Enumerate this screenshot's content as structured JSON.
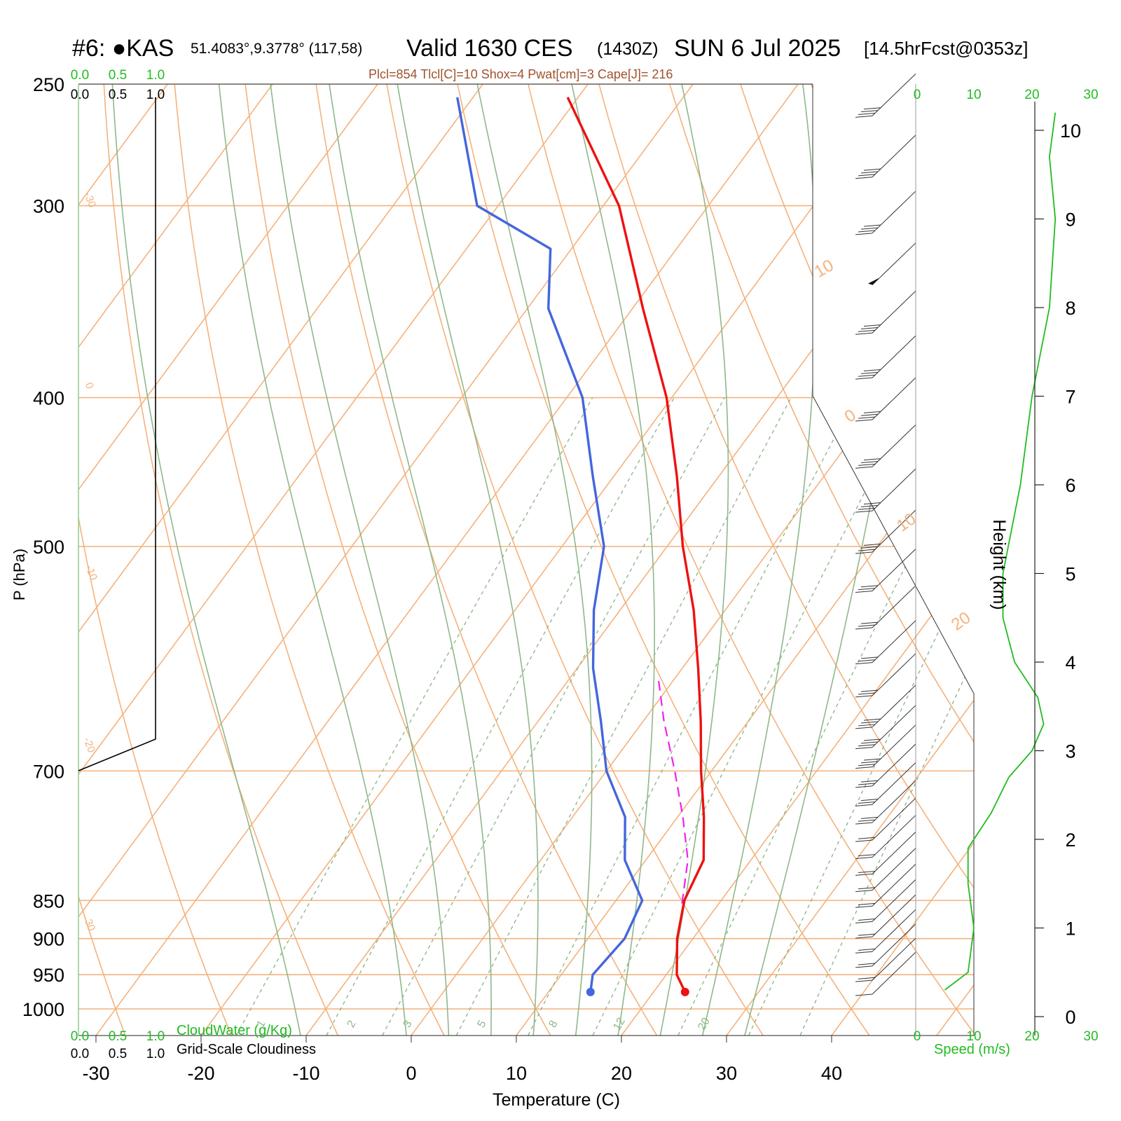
{
  "header": {
    "station": "#6: ●KAS",
    "coords": "51.4083°,9.3778° (117,58)",
    "valid": "Valid 1630 CES",
    "zulu": "(1430Z)",
    "date": "SUN 6 Jul 2025",
    "forecast": "[14.5hrFcst@0353z]",
    "indices": "Plcl=854 Tlcl[C]=10 Shox=4 Pwat[cm]=3 Cape[J]= 216"
  },
  "colors": {
    "temperature": "#ee1111",
    "dewpoint": "#4466dd",
    "parcel": "#ee22ee",
    "isotherm": "#f4b27d",
    "dry_adiabat": "#f4b27d",
    "moist_adiabat": "#8fb88a",
    "mixing_ratio": "#8fb88a",
    "wind_speed": "#22bb22",
    "brown_text": "#a0522d"
  },
  "chart_data": {
    "type": "skew-t",
    "xlabel": "Temperature (C)",
    "ylabel": "P (hPa)",
    "y2label": "Height (km)",
    "x_ticks": [
      "-30",
      "-20",
      "-10",
      "0",
      "10",
      "20",
      "30",
      "40"
    ],
    "pressure_ticks": [
      "250",
      "300",
      "400",
      "500",
      "700",
      "850",
      "900",
      "950",
      "1000"
    ],
    "height_ticks": [
      "0",
      "1",
      "2",
      "3",
      "4",
      "5",
      "6",
      "7",
      "8",
      "9",
      "10"
    ],
    "speed_axis": {
      "label": "Speed (m/s)",
      "ticks": [
        "0",
        "10",
        "20",
        "30"
      ]
    },
    "cloud_scale": {
      "top_green": [
        "0.0",
        "0.5",
        "1.0"
      ],
      "top_black": [
        "0.0",
        "0.5",
        "1.0"
      ],
      "bottom_green": [
        "0.0",
        "0.5",
        "1.0"
      ],
      "bottom_black": [
        "0.0",
        "0.5",
        "1.0"
      ],
      "cloud_water_label": "CloudWater (g/Kg)",
      "cloudiness_label": "Grid-Scale Cloudiness"
    },
    "dry_adiabat_labels": [
      "-30",
      "-20",
      "-10",
      "0",
      "10",
      "0",
      "10",
      "20",
      "30"
    ],
    "mixing_ratio_labels": [
      "1",
      "2",
      "3",
      "5",
      "8",
      "12",
      "20"
    ],
    "temperature_profile": [
      {
        "p": 975,
        "t": 23.0
      },
      {
        "p": 950,
        "t": 21.0
      },
      {
        "p": 900,
        "t": 18.5
      },
      {
        "p": 850,
        "t": 16.5
      },
      {
        "p": 800,
        "t": 15.5
      },
      {
        "p": 750,
        "t": 12.5
      },
      {
        "p": 700,
        "t": 9.0
      },
      {
        "p": 650,
        "t": 5.5
      },
      {
        "p": 600,
        "t": 1.5
      },
      {
        "p": 550,
        "t": -3.0
      },
      {
        "p": 500,
        "t": -8.5
      },
      {
        "p": 450,
        "t": -14.0
      },
      {
        "p": 400,
        "t": -20.5
      },
      {
        "p": 350,
        "t": -29.0
      },
      {
        "p": 300,
        "t": -38.5
      },
      {
        "p": 255,
        "t": -51.0
      }
    ],
    "dewpoint_profile": [
      {
        "p": 975,
        "t": 14.0
      },
      {
        "p": 950,
        "t": 13.0
      },
      {
        "p": 900,
        "t": 13.5
      },
      {
        "p": 850,
        "t": 12.5
      },
      {
        "p": 800,
        "t": 8.0
      },
      {
        "p": 750,
        "t": 5.0
      },
      {
        "p": 700,
        "t": 0.0
      },
      {
        "p": 650,
        "t": -4.0
      },
      {
        "p": 600,
        "t": -8.5
      },
      {
        "p": 550,
        "t": -12.5
      },
      {
        "p": 500,
        "t": -16.0
      },
      {
        "p": 450,
        "t": -22.0
      },
      {
        "p": 400,
        "t": -28.5
      },
      {
        "p": 350,
        "t": -38.0
      },
      {
        "p": 320,
        "t": -42.0
      },
      {
        "p": 300,
        "t": -52.0
      },
      {
        "p": 255,
        "t": -61.5
      }
    ],
    "parcel_profile": [
      {
        "p": 854,
        "t": 16.5
      },
      {
        "p": 800,
        "t": 14.0
      },
      {
        "p": 750,
        "t": 10.5
      },
      {
        "p": 700,
        "t": 6.5
      },
      {
        "p": 650,
        "t": 2.0
      },
      {
        "p": 610,
        "t": -1.5
      }
    ],
    "wind_speed_profile": [
      {
        "h": 0.3,
        "s": 5
      },
      {
        "h": 0.5,
        "s": 9
      },
      {
        "h": 1.0,
        "s": 10
      },
      {
        "h": 1.5,
        "s": 9
      },
      {
        "h": 1.9,
        "s": 9
      },
      {
        "h": 2.3,
        "s": 13
      },
      {
        "h": 2.7,
        "s": 16
      },
      {
        "h": 3.0,
        "s": 20
      },
      {
        "h": 3.3,
        "s": 22
      },
      {
        "h": 3.6,
        "s": 21
      },
      {
        "h": 4.0,
        "s": 17
      },
      {
        "h": 4.5,
        "s": 15
      },
      {
        "h": 5.0,
        "s": 15
      },
      {
        "h": 6.0,
        "s": 18
      },
      {
        "h": 7.0,
        "s": 20
      },
      {
        "h": 8.0,
        "s": 23
      },
      {
        "h": 9.0,
        "s": 24
      },
      {
        "h": 9.7,
        "s": 23
      },
      {
        "h": 10.2,
        "s": 24
      }
    ],
    "wind_barbs": [
      {
        "p": 260,
        "speed_ms": 20
      },
      {
        "p": 285,
        "speed_ms": 20
      },
      {
        "p": 310,
        "speed_ms": 20
      },
      {
        "p": 335,
        "speed_ms": 25
      },
      {
        "p": 360,
        "speed_ms": 20
      },
      {
        "p": 385,
        "speed_ms": 20
      },
      {
        "p": 410,
        "speed_ms": 20
      },
      {
        "p": 440,
        "speed_ms": 20
      },
      {
        "p": 470,
        "speed_ms": 20
      },
      {
        "p": 500,
        "speed_ms": 20
      },
      {
        "p": 530,
        "speed_ms": 15
      },
      {
        "p": 560,
        "speed_ms": 15
      },
      {
        "p": 590,
        "speed_ms": 15
      },
      {
        "p": 620,
        "speed_ms": 15
      },
      {
        "p": 650,
        "speed_ms": 20
      },
      {
        "p": 670,
        "speed_ms": 20
      },
      {
        "p": 690,
        "speed_ms": 20
      },
      {
        "p": 710,
        "speed_ms": 15
      },
      {
        "p": 730,
        "speed_ms": 15
      },
      {
        "p": 750,
        "speed_ms": 15
      },
      {
        "p": 770,
        "speed_ms": 10
      },
      {
        "p": 790,
        "speed_ms": 10
      },
      {
        "p": 810,
        "speed_ms": 10
      },
      {
        "p": 830,
        "speed_ms": 10
      },
      {
        "p": 850,
        "speed_ms": 10
      },
      {
        "p": 870,
        "speed_ms": 10
      },
      {
        "p": 890,
        "speed_ms": 10
      },
      {
        "p": 910,
        "speed_ms": 10
      },
      {
        "p": 930,
        "speed_ms": 10
      },
      {
        "p": 950,
        "speed_ms": 10
      },
      {
        "p": 970,
        "speed_ms": 5
      }
    ]
  }
}
